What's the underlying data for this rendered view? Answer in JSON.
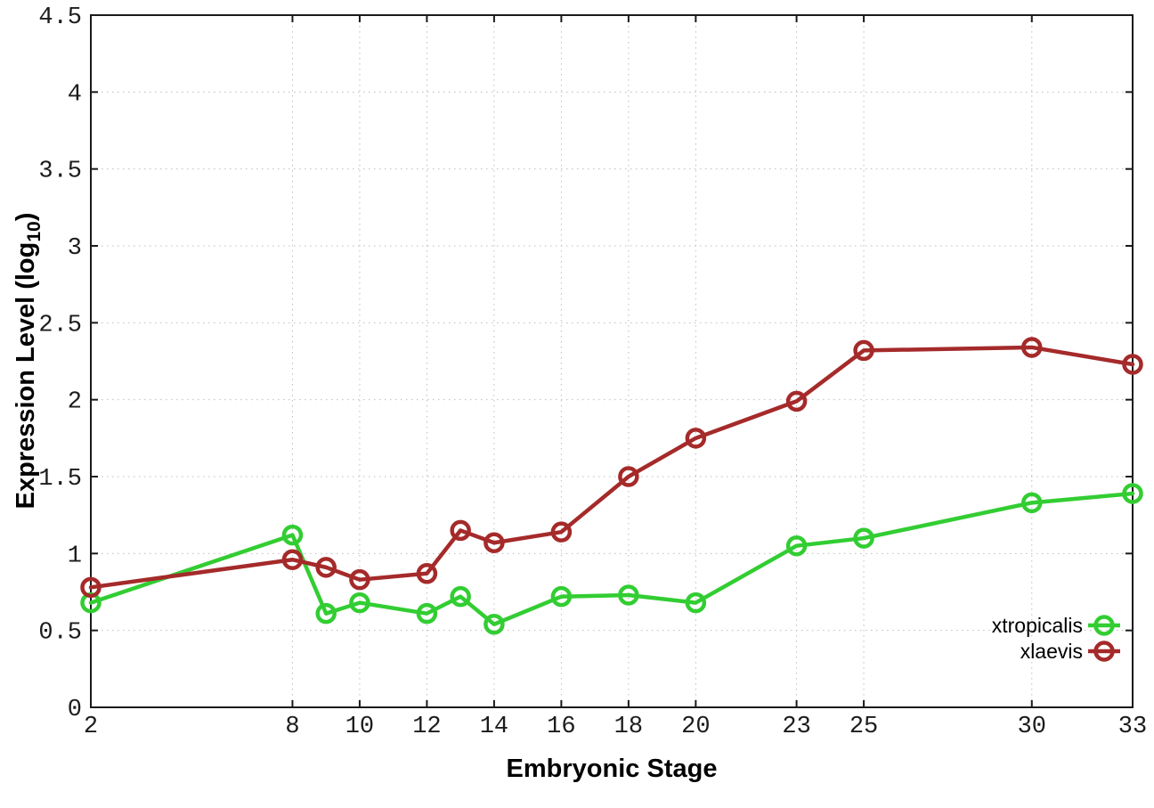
{
  "page": {
    "background": "#ffffff"
  },
  "chart_data": {
    "type": "line",
    "title": "",
    "xlabel": "Embryonic Stage",
    "ylabel": "Expression Level (log10)",
    "ylabel_parts": {
      "pre": "Expression Level (log",
      "sub": "10",
      "post": ")"
    },
    "xlim": [
      2,
      33
    ],
    "ylim": [
      0,
      4.5
    ],
    "xticks": [
      2,
      8,
      10,
      12,
      14,
      16,
      18,
      20,
      23,
      25,
      30,
      33
    ],
    "yticks": [
      0,
      0.5,
      1,
      1.5,
      2,
      2.5,
      3,
      3.5,
      4,
      4.5
    ],
    "grid": true,
    "grid_style": "dotted",
    "legend_position": "inside-bottom-right",
    "marker": "open-circle",
    "x": [
      2,
      8,
      9,
      10,
      12,
      13,
      14,
      16,
      18,
      20,
      23,
      25,
      30,
      33
    ],
    "series": [
      {
        "name": "xtropicalis",
        "color": "#32cd32",
        "values": [
          0.68,
          1.12,
          0.61,
          0.68,
          0.61,
          0.72,
          0.54,
          0.72,
          0.73,
          0.68,
          1.05,
          1.1,
          1.33,
          1.39
        ]
      },
      {
        "name": "xlaevis",
        "color": "#a52a2a",
        "values": [
          0.78,
          0.96,
          0.91,
          0.83,
          0.87,
          1.15,
          1.07,
          1.14,
          1.5,
          1.75,
          1.99,
          2.32,
          2.34,
          2.23
        ]
      }
    ],
    "colors": {
      "axis": "#1a1a1a",
      "grid": "#bdbdbd",
      "text": "#000000"
    }
  }
}
